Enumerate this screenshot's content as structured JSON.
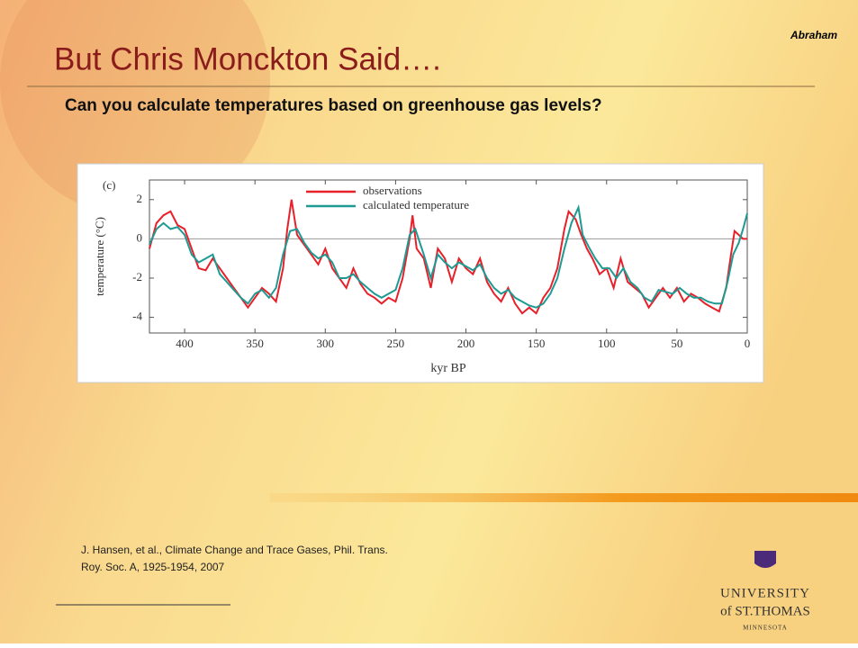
{
  "header": {
    "author": "Abraham",
    "title": "But Chris Monckton Said….",
    "subtitle": "Can you calculate temperatures based on greenhouse gas levels?"
  },
  "chart_data": {
    "type": "line",
    "panel_label": "(c)",
    "x_label": "kyr BP",
    "y_label": "temperature (°C)",
    "xlim": [
      425,
      0
    ],
    "xticks": [
      400,
      350,
      300,
      250,
      200,
      150,
      100,
      50,
      0
    ],
    "ylim": [
      -4.8,
      3
    ],
    "yticks": [
      -4,
      -2,
      0,
      2
    ],
    "hline": 0,
    "legend": "top",
    "series": [
      {
        "name": "observations",
        "color": "#e8202a",
        "x": [
          425,
          420,
          415,
          410,
          405,
          400,
          395,
          390,
          385,
          380,
          375,
          370,
          365,
          360,
          355,
          350,
          345,
          340,
          335,
          330,
          327,
          324,
          320,
          315,
          310,
          305,
          300,
          295,
          290,
          285,
          280,
          275,
          270,
          265,
          260,
          255,
          250,
          245,
          240,
          238,
          235,
          230,
          225,
          220,
          215,
          210,
          205,
          200,
          195,
          190,
          185,
          180,
          175,
          170,
          165,
          160,
          155,
          150,
          145,
          140,
          135,
          130,
          127,
          122,
          118,
          114,
          110,
          105,
          100,
          95,
          90,
          85,
          80,
          75,
          70,
          65,
          60,
          55,
          50,
          45,
          40,
          35,
          30,
          25,
          20,
          15,
          12,
          9,
          6,
          3,
          0
        ],
        "values": [
          -0.5,
          0.8,
          1.2,
          1.4,
          0.7,
          0.5,
          -0.5,
          -1.5,
          -1.6,
          -1.0,
          -1.5,
          -2.0,
          -2.5,
          -3.0,
          -3.5,
          -3.0,
          -2.5,
          -2.8,
          -3.2,
          -1.5,
          0.5,
          2.0,
          0.2,
          -0.3,
          -0.8,
          -1.3,
          -0.5,
          -1.5,
          -2.0,
          -2.5,
          -1.5,
          -2.3,
          -2.8,
          -3.0,
          -3.3,
          -3.0,
          -3.2,
          -2.0,
          0.0,
          1.2,
          -0.5,
          -1.0,
          -2.5,
          -0.5,
          -1.0,
          -2.2,
          -1.0,
          -1.5,
          -1.8,
          -1.0,
          -2.2,
          -2.8,
          -3.2,
          -2.5,
          -3.3,
          -3.8,
          -3.5,
          -3.8,
          -3.0,
          -2.5,
          -1.5,
          0.5,
          1.4,
          1.0,
          0.2,
          -0.5,
          -1.0,
          -1.8,
          -1.5,
          -2.5,
          -1.0,
          -2.2,
          -2.5,
          -2.8,
          -3.5,
          -3.0,
          -2.5,
          -3.0,
          -2.5,
          -3.2,
          -2.8,
          -3.0,
          -3.3,
          -3.5,
          -3.7,
          -2.5,
          -1.0,
          0.4,
          0.2,
          0.0,
          0.0
        ]
      },
      {
        "name": "calculated temperature",
        "color": "#1f9a93",
        "x": [
          425,
          420,
          415,
          410,
          405,
          400,
          395,
          390,
          385,
          380,
          375,
          370,
          365,
          360,
          355,
          350,
          345,
          340,
          335,
          330,
          325,
          320,
          315,
          310,
          305,
          300,
          295,
          290,
          285,
          280,
          275,
          270,
          265,
          260,
          255,
          250,
          245,
          240,
          236,
          230,
          225,
          220,
          215,
          210,
          205,
          200,
          195,
          190,
          185,
          180,
          175,
          170,
          165,
          160,
          155,
          150,
          145,
          140,
          135,
          130,
          125,
          120,
          117,
          112,
          108,
          103,
          98,
          93,
          88,
          83,
          78,
          73,
          68,
          63,
          58,
          53,
          48,
          43,
          38,
          33,
          28,
          23,
          18,
          14,
          10,
          6,
          3,
          0
        ],
        "values": [
          -0.3,
          0.5,
          0.8,
          0.5,
          0.6,
          0.2,
          -0.8,
          -1.2,
          -1.0,
          -0.8,
          -1.8,
          -2.2,
          -2.6,
          -3.0,
          -3.3,
          -2.8,
          -2.6,
          -3.0,
          -2.5,
          -0.8,
          0.4,
          0.5,
          -0.2,
          -0.7,
          -1.0,
          -0.8,
          -1.2,
          -2.0,
          -2.0,
          -1.8,
          -2.2,
          -2.5,
          -2.8,
          -3.0,
          -2.8,
          -2.6,
          -1.5,
          0.2,
          0.5,
          -0.8,
          -2.0,
          -0.8,
          -1.2,
          -1.5,
          -1.2,
          -1.4,
          -1.6,
          -1.3,
          -2.0,
          -2.5,
          -2.8,
          -2.6,
          -3.0,
          -3.2,
          -3.4,
          -3.5,
          -3.3,
          -2.8,
          -2.0,
          -0.5,
          0.8,
          1.6,
          0.2,
          -0.5,
          -1.0,
          -1.5,
          -1.5,
          -2.0,
          -1.5,
          -2.2,
          -2.5,
          -3.0,
          -3.2,
          -2.6,
          -2.7,
          -2.8,
          -2.5,
          -2.8,
          -3.0,
          -3.0,
          -3.2,
          -3.3,
          -3.3,
          -2.2,
          -0.8,
          -0.2,
          0.5,
          1.3
        ]
      }
    ]
  },
  "citation": [
    "J. Hansen, et al., Climate Change and Trace Gases, Phil. Trans.",
    "Roy. Soc. A, 1925-1954, 2007"
  ],
  "logo": [
    "UNIVERSITY",
    "of ST.THOMAS",
    "MINNESOTA"
  ]
}
